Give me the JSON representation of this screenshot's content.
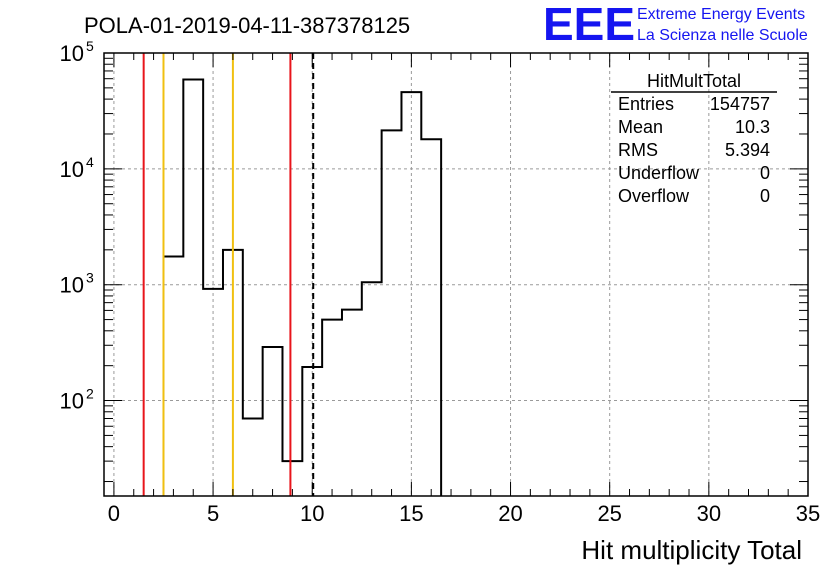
{
  "chart_title": "POLA-01-2019-04-11-387378125",
  "logo": {
    "big": "EEE",
    "line1": "Extreme Energy Events",
    "line2": "La Scienza nelle Scuole",
    "color": "#1515f0"
  },
  "stats": {
    "name": "HitMultTotal",
    "rows": [
      {
        "label": "Entries",
        "value": "154757"
      },
      {
        "label": "Mean",
        "value": "10.3"
      },
      {
        "label": "RMS",
        "value": "5.394"
      },
      {
        "label": "Underflow",
        "value": "0"
      },
      {
        "label": "Overflow",
        "value": "0"
      }
    ]
  },
  "chart_data": {
    "type": "histogram",
    "title": "POLA-01-2019-04-11-387378125",
    "xlabel": "Hit multiplicity Total",
    "ylabel": "",
    "xlim": [
      -0.5,
      35
    ],
    "ylim": [
      15,
      100000
    ],
    "yscale": "log",
    "grid": true,
    "x_ticks": [
      0,
      5,
      10,
      15,
      20,
      25,
      30,
      35
    ],
    "y_ticks": [
      {
        "value": 100,
        "base": "10",
        "exp": "2"
      },
      {
        "value": 1000,
        "base": "10",
        "exp": "3"
      },
      {
        "value": 10000,
        "base": "10",
        "exp": "4"
      },
      {
        "value": 100000,
        "base": "10",
        "exp": "5"
      }
    ],
    "bin_width": 1,
    "bins": [
      {
        "x": 3,
        "count": 1750
      },
      {
        "x": 4,
        "count": 59000
      },
      {
        "x": 5,
        "count": 920
      },
      {
        "x": 6,
        "count": 2000
      },
      {
        "x": 7,
        "count": 70
      },
      {
        "x": 8,
        "count": 290
      },
      {
        "x": 9,
        "count": 30
      },
      {
        "x": 10,
        "count": 195
      },
      {
        "x": 11,
        "count": 500
      },
      {
        "x": 12,
        "count": 610
      },
      {
        "x": 13,
        "count": 1050
      },
      {
        "x": 14,
        "count": 21500
      },
      {
        "x": 15,
        "count": 46000
      },
      {
        "x": 16,
        "count": 18000
      }
    ],
    "vertical_lines": [
      {
        "x": 1.5,
        "color": "#e8151b",
        "style": "solid"
      },
      {
        "x": 2.5,
        "color": "#f0c010",
        "style": "solid"
      },
      {
        "x": 6.0,
        "color": "#f0c010",
        "style": "solid"
      },
      {
        "x": 8.9,
        "color": "#e8151b",
        "style": "solid"
      },
      {
        "x": 10.05,
        "color": "#000000",
        "style": "dashed"
      }
    ]
  }
}
